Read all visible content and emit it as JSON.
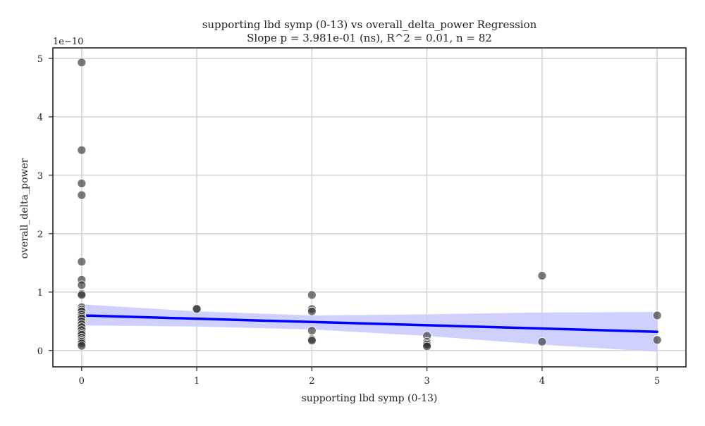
{
  "chart_data": {
    "type": "scatter",
    "title": "supporting lbd symp (0-13) vs overall_delta_power Regression",
    "subtitle": "Slope p = 3.981e-01 (ns), R^2 = 0.01, n = 82",
    "xlabel": "supporting lbd symp (0-13)",
    "ylabel": "overall_delta_power",
    "y_offset_label": "1e−10",
    "y_scale": 1e-10,
    "xlim": [
      -0.25,
      5.25
    ],
    "ylim": [
      -0.28,
      5.18
    ],
    "x_ticks": [
      0,
      1,
      2,
      3,
      4,
      5
    ],
    "y_ticks": [
      0,
      1,
      2,
      3,
      4,
      5
    ],
    "grid": true,
    "colors": {
      "points": "#333333",
      "regression_line": "#0000ff",
      "confidence_band": "#c8c8ff"
    },
    "points": [
      {
        "x": 0,
        "y": 4.93
      },
      {
        "x": 0,
        "y": 3.43
      },
      {
        "x": 0,
        "y": 2.86
      },
      {
        "x": 0,
        "y": 2.66
      },
      {
        "x": 0,
        "y": 1.52
      },
      {
        "x": 0,
        "y": 1.21
      },
      {
        "x": 0,
        "y": 1.12
      },
      {
        "x": 0,
        "y": 0.97
      },
      {
        "x": 0,
        "y": 0.95
      },
      {
        "x": 0,
        "y": 0.74
      },
      {
        "x": 0,
        "y": 0.7
      },
      {
        "x": 0,
        "y": 0.67
      },
      {
        "x": 0,
        "y": 0.62
      },
      {
        "x": 0,
        "y": 0.58
      },
      {
        "x": 0,
        "y": 0.55
      },
      {
        "x": 0,
        "y": 0.5
      },
      {
        "x": 0,
        "y": 0.45
      },
      {
        "x": 0,
        "y": 0.4
      },
      {
        "x": 0,
        "y": 0.35
      },
      {
        "x": 0,
        "y": 0.3
      },
      {
        "x": 0,
        "y": 0.27
      },
      {
        "x": 0,
        "y": 0.22
      },
      {
        "x": 0,
        "y": 0.18
      },
      {
        "x": 0,
        "y": 0.15
      },
      {
        "x": 0,
        "y": 0.12
      },
      {
        "x": 0,
        "y": 0.08
      },
      {
        "x": 1,
        "y": 0.72
      },
      {
        "x": 1,
        "y": 0.71
      },
      {
        "x": 2,
        "y": 0.95
      },
      {
        "x": 2,
        "y": 0.71
      },
      {
        "x": 2,
        "y": 0.67
      },
      {
        "x": 2,
        "y": 0.34
      },
      {
        "x": 2,
        "y": 0.19
      },
      {
        "x": 2,
        "y": 0.17
      },
      {
        "x": 3,
        "y": 0.25
      },
      {
        "x": 3,
        "y": 0.15
      },
      {
        "x": 3,
        "y": 0.12
      },
      {
        "x": 3,
        "y": 0.1
      },
      {
        "x": 3,
        "y": 0.07
      },
      {
        "x": 4,
        "y": 1.28
      },
      {
        "x": 4,
        "y": 0.15
      },
      {
        "x": 5,
        "y": 0.6
      },
      {
        "x": 5,
        "y": 0.18
      }
    ],
    "regression": {
      "x_start": 0,
      "y_start": 0.6,
      "x_end": 5,
      "y_end": 0.32,
      "band": [
        {
          "x": 0,
          "lower": 0.43,
          "upper": 0.79
        },
        {
          "x": 1,
          "lower": 0.41,
          "upper": 0.67
        },
        {
          "x": 2,
          "lower": 0.36,
          "upper": 0.6
        },
        {
          "x": 3,
          "lower": 0.25,
          "upper": 0.62
        },
        {
          "x": 4,
          "lower": 0.1,
          "upper": 0.65
        },
        {
          "x": 5,
          "lower": -0.02,
          "upper": 0.66
        }
      ]
    }
  }
}
